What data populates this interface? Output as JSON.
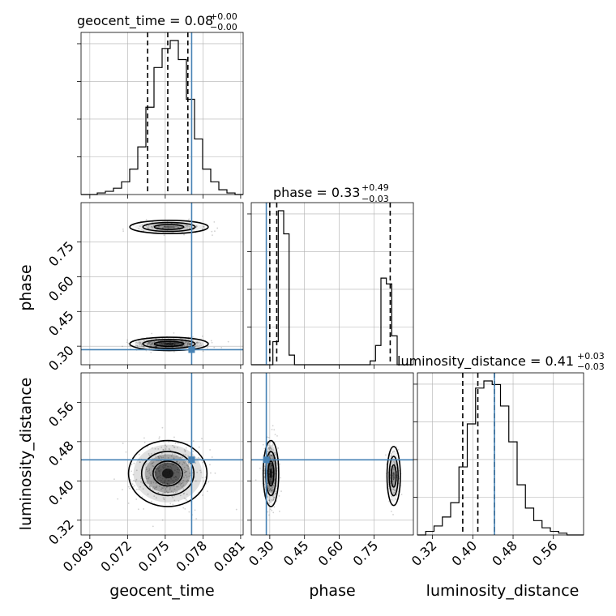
{
  "colors": {
    "truth": "#4682b4",
    "hist": "#000000",
    "grid": "#b0b0b0",
    "density": "#000000"
  },
  "chart_data": {
    "type": "corner",
    "parameters": [
      "geocent_time",
      "phase",
      "luminosity_distance"
    ],
    "titles": [
      {
        "param": "geocent_time",
        "text": "geocent_time = 0.08",
        "sup": "+0.00",
        "sub": "−0.00"
      },
      {
        "param": "phase",
        "text": "phase = 0.33",
        "sup": "+0.49",
        "sub": "−0.03"
      },
      {
        "param": "luminosity_distance",
        "text": "luminosity_distance = 0.41",
        "sup": "+0.03",
        "sub": "−0.03"
      }
    ],
    "axes": {
      "geocent_time": {
        "range": [
          0.0683,
          0.0812
        ],
        "ticks": [
          0.069,
          0.072,
          0.075,
          0.078,
          0.081
        ],
        "tick_labels": [
          "0.069",
          "0.072",
          "0.075",
          "0.078",
          "0.081"
        ],
        "truth": 0.0771,
        "quantiles": [
          0.0736,
          0.0752,
          0.0768
        ]
      },
      "phase": {
        "range": [
          0.22,
          0.92
        ],
        "ticks": [
          0.3,
          0.45,
          0.6,
          0.75
        ],
        "tick_labels": [
          "0.30",
          "0.45",
          "0.60",
          "0.75"
        ],
        "truth": 0.285,
        "quantiles": [
          0.3,
          0.33,
          0.82
        ]
      },
      "luminosity_distance": {
        "range": [
          0.29,
          0.62
        ],
        "ticks": [
          0.32,
          0.4,
          0.48,
          0.56
        ],
        "tick_labels": [
          "0.32",
          "0.40",
          "0.48",
          "0.56"
        ],
        "truth": 0.443,
        "quantiles": [
          0.38,
          0.41,
          0.443
        ]
      }
    },
    "histograms": {
      "geocent_time": {
        "edges_range": [
          0.0683,
          0.0812
        ],
        "counts": [
          0,
          0,
          1,
          2,
          4,
          8,
          16,
          30,
          55,
          80,
          92,
          97,
          85,
          60,
          35,
          16,
          8,
          3,
          1,
          0
        ]
      },
      "phase": {
        "edges_range": [
          0.22,
          0.92
        ],
        "counts": [
          0,
          0,
          0,
          0,
          12,
          80,
          68,
          5,
          0,
          0,
          0,
          0,
          0,
          0,
          0,
          0,
          0,
          0,
          0,
          0,
          0,
          0,
          2,
          10,
          45,
          42,
          15,
          0,
          0,
          0
        ]
      },
      "luminosity_distance": {
        "edges_range": [
          0.29,
          0.62
        ],
        "counts": [
          0,
          2,
          5,
          10,
          18,
          38,
          62,
          82,
          86,
          84,
          72,
          52,
          28,
          15,
          8,
          4,
          2,
          1,
          0,
          0
        ]
      }
    },
    "clusters": [
      {
        "x": "geocent_time",
        "y": "phase",
        "blobs": [
          {
            "cx": 0.0753,
            "cy": 0.31,
            "sx": 0.0013,
            "sy": 0.012,
            "w": 0.82
          },
          {
            "cx": 0.0753,
            "cy": 0.815,
            "sx": 0.0013,
            "sy": 0.012,
            "w": 0.18
          }
        ]
      },
      {
        "x": "geocent_time",
        "y": "luminosity_distance",
        "blobs": [
          {
            "cx": 0.0752,
            "cy": 0.415,
            "sx": 0.0013,
            "sy": 0.028,
            "w": 1.0
          }
        ]
      },
      {
        "x": "phase",
        "y": "luminosity_distance",
        "blobs": [
          {
            "cx": 0.305,
            "cy": 0.415,
            "sx": 0.014,
            "sy": 0.028,
            "w": 0.82
          },
          {
            "cx": 0.835,
            "cy": 0.41,
            "sx": 0.012,
            "sy": 0.025,
            "w": 0.18
          }
        ]
      }
    ],
    "grid": true
  }
}
